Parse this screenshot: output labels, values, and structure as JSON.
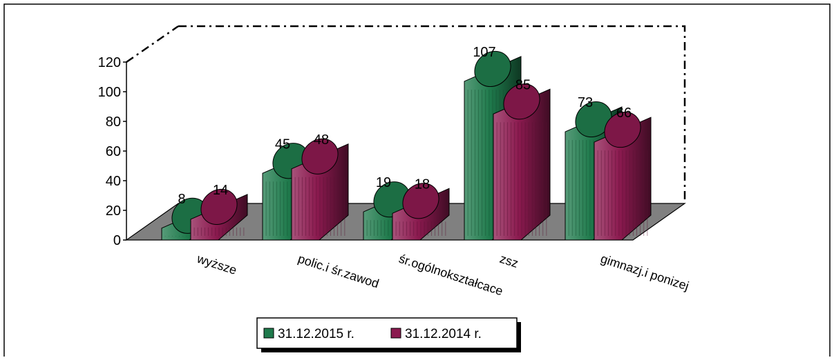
{
  "chart_data": {
    "type": "bar",
    "categories": [
      "wyższe",
      "polic.i śr.zawod",
      "śr.ogólnokształcace",
      "zsz",
      "gimnazj.i ponizej"
    ],
    "series": [
      {
        "name": "31.12.2015 r.",
        "values": [
          8,
          45,
          19,
          107,
          73
        ],
        "color": "#1f7a4c"
      },
      {
        "name": "31.12.2014 r.",
        "values": [
          14,
          48,
          18,
          85,
          66
        ],
        "color": "#8b1a4f"
      }
    ],
    "ylim": [
      0,
      120
    ],
    "yticks": [
      "0",
      "20",
      "40",
      "60",
      "80",
      "100",
      "120"
    ],
    "legend": "bottom",
    "floor_color": "#808080"
  }
}
